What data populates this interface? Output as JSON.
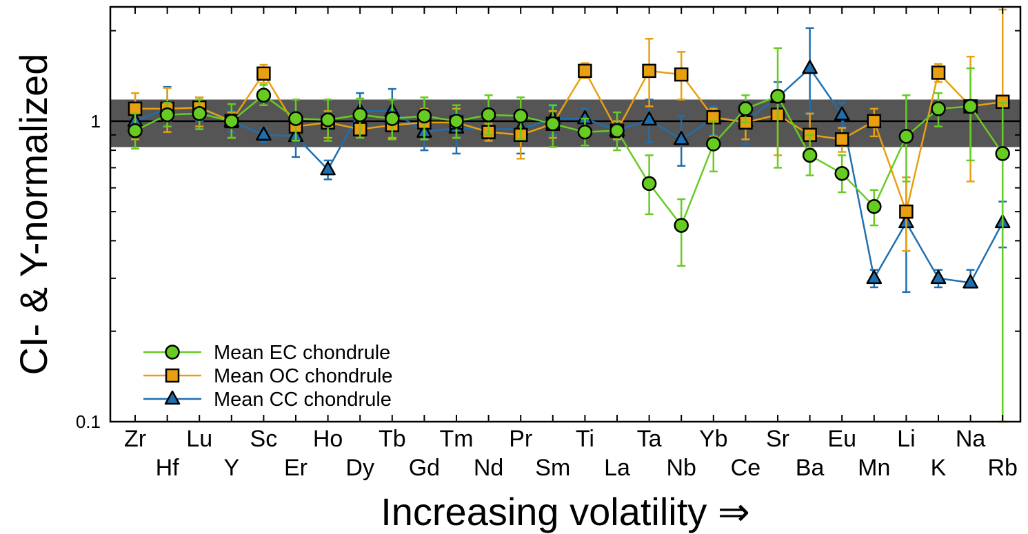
{
  "chart_data": {
    "type": "line",
    "ylabel": "CI- & Y-normalized",
    "xlabel": "Increasing volatility ⇒",
    "y_scale": "log",
    "ylim": [
      0.1,
      2.4
    ],
    "y_tick_labels": [
      "0.1",
      "1"
    ],
    "band": {
      "lower": 0.82,
      "upper": 1.18,
      "color": "#555555"
    },
    "reference_line": 1,
    "categories": [
      "Zr",
      "Hf",
      "Lu",
      "Y",
      "Sc",
      "Er",
      "Ho",
      "Dy",
      "Tb",
      "Gd",
      "Tm",
      "Nd",
      "Pr",
      "Sm",
      "Ti",
      "La",
      "Ta",
      "Nb",
      "Yb",
      "Ce",
      "Sr",
      "Ba",
      "Eu",
      "Mn",
      "Li",
      "K",
      "Na",
      "Rb"
    ],
    "series": [
      {
        "name": "Mean EC chondrule",
        "color": "#66cc22",
        "marker": "circle",
        "values": [
          0.93,
          1.05,
          1.06,
          1.0,
          1.22,
          1.02,
          1.01,
          1.05,
          1.02,
          1.04,
          1.0,
          1.05,
          1.04,
          0.98,
          0.92,
          0.93,
          0.62,
          0.45,
          0.84,
          1.1,
          1.21,
          0.77,
          0.67,
          0.52,
          0.89,
          1.1,
          1.12,
          0.78
        ],
        "err_low": [
          0.81,
          0.96,
          0.94,
          0.88,
          1.13,
          0.86,
          0.86,
          0.88,
          0.87,
          0.87,
          0.88,
          0.9,
          0.87,
          0.82,
          0.83,
          0.8,
          0.49,
          0.33,
          0.68,
          0.99,
          0.7,
          0.66,
          0.58,
          0.45,
          0.63,
          0.96,
          0.74,
          0.1
        ],
        "err_high": [
          1.06,
          1.15,
          1.18,
          1.14,
          1.32,
          1.18,
          1.18,
          1.19,
          1.18,
          1.2,
          1.13,
          1.22,
          1.2,
          1.13,
          1.02,
          1.07,
          0.77,
          0.55,
          1.0,
          1.22,
          1.75,
          0.9,
          0.77,
          0.59,
          1.22,
          1.24,
          1.5,
          1.15
        ]
      },
      {
        "name": "Mean OC chondrule",
        "color": "#e8a010",
        "marker": "square",
        "values": [
          1.1,
          1.1,
          1.11,
          1.0,
          1.44,
          0.96,
          0.99,
          0.94,
          0.97,
          0.99,
          0.99,
          0.92,
          0.9,
          0.98,
          1.47,
          0.93,
          1.47,
          1.43,
          1.03,
          0.99,
          1.05,
          0.9,
          0.87,
          1.0,
          0.5,
          1.45,
          1.12,
          1.16
        ],
        "err_low": [
          0.87,
          0.92,
          0.96,
          0.88,
          1.34,
          0.86,
          0.88,
          0.9,
          0.88,
          0.87,
          0.88,
          0.86,
          0.75,
          0.88,
          1.39,
          0.87,
          1.12,
          1.18,
          0.89,
          0.87,
          0.77,
          0.81,
          0.79,
          0.89,
          0.37,
          1.35,
          0.63,
          0.1
        ],
        "err_high": [
          1.24,
          1.29,
          1.2,
          1.07,
          1.54,
          1.03,
          1.08,
          0.98,
          1.05,
          1.1,
          1.1,
          0.98,
          1.05,
          1.08,
          1.56,
          1.0,
          1.88,
          1.7,
          1.1,
          1.08,
          1.2,
          1.06,
          0.95,
          1.1,
          0.65,
          1.55,
          1.64,
          2.35
        ]
      },
      {
        "name": "Mean CC chondrule",
        "color": "#1f6fb0",
        "marker": "triangle",
        "values": [
          1.0,
          1.1,
          1.1,
          1.0,
          0.9,
          0.89,
          0.69,
          1.08,
          1.08,
          0.92,
          0.95,
          0.94,
          0.94,
          1.02,
          1.02,
          0.93,
          1.01,
          0.87,
          1.02,
          1.0,
          1.2,
          1.5,
          1.05,
          0.3,
          0.46,
          0.3,
          0.29,
          0.46
        ],
        "err_low": [
          0.93,
          1.0,
          1.0,
          0.92,
          0.85,
          0.76,
          0.64,
          0.92,
          0.95,
          0.8,
          0.78,
          0.87,
          0.78,
          0.9,
          0.93,
          0.86,
          0.85,
          0.71,
          0.9,
          0.84,
          1.05,
          1.05,
          0.95,
          0.28,
          0.27,
          0.28,
          0.28,
          0.38
        ],
        "err_high": [
          1.07,
          1.3,
          1.2,
          1.08,
          0.95,
          0.98,
          0.74,
          1.24,
          1.28,
          1.06,
          1.06,
          1.03,
          1.08,
          1.12,
          1.1,
          1.0,
          1.18,
          1.04,
          1.12,
          1.14,
          1.35,
          2.04,
          1.15,
          0.32,
          0.65,
          0.32,
          0.32,
          0.54
        ]
      }
    ],
    "legend": {
      "placement": "bottom-left"
    }
  }
}
